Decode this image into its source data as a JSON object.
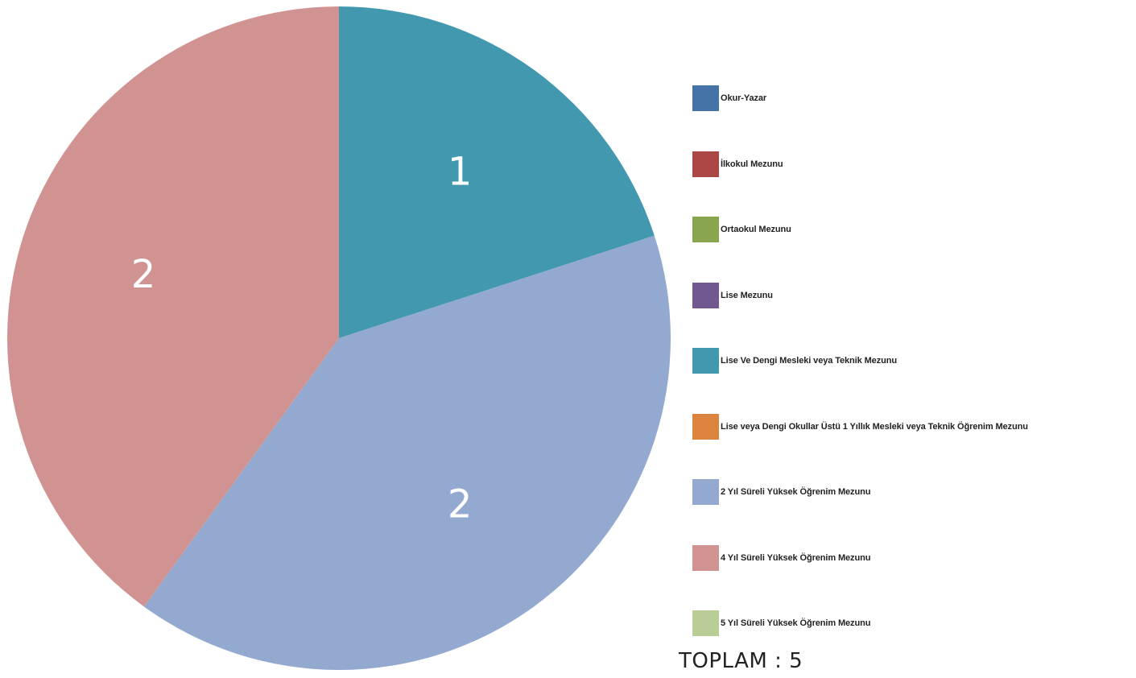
{
  "chart_data": {
    "type": "pie",
    "categories": [
      "Okur-Yazar",
      "İlkokul Mezunu",
      "Ortaokul Mezunu",
      "Lise Mezunu",
      "Lise Ve Dengi Mesleki veya Teknik Mezunu",
      "Lise veya Dengi Okullar Üstü 1 Yıllık Mesleki veya Teknik Öğrenim Mezunu",
      "2 Yıl Süreli Yüksek Öğrenim Mezunu",
      "4 Yıl Süreli Yüksek Öğrenim Mezunu",
      "5 Yıl Süreli Yüksek Öğrenim Mezunu"
    ],
    "values": [
      0,
      0,
      0,
      0,
      1,
      0,
      2,
      2,
      0
    ],
    "colors": [
      "#4572A7",
      "#AA4643",
      "#89A54E",
      "#71588F",
      "#4198AF",
      "#DB843D",
      "#93A9CF",
      "#D19392",
      "#B9CD96"
    ],
    "legend_position": "right"
  },
  "total": {
    "label": "TOPLAM",
    "separator": " : ",
    "value": "5"
  }
}
